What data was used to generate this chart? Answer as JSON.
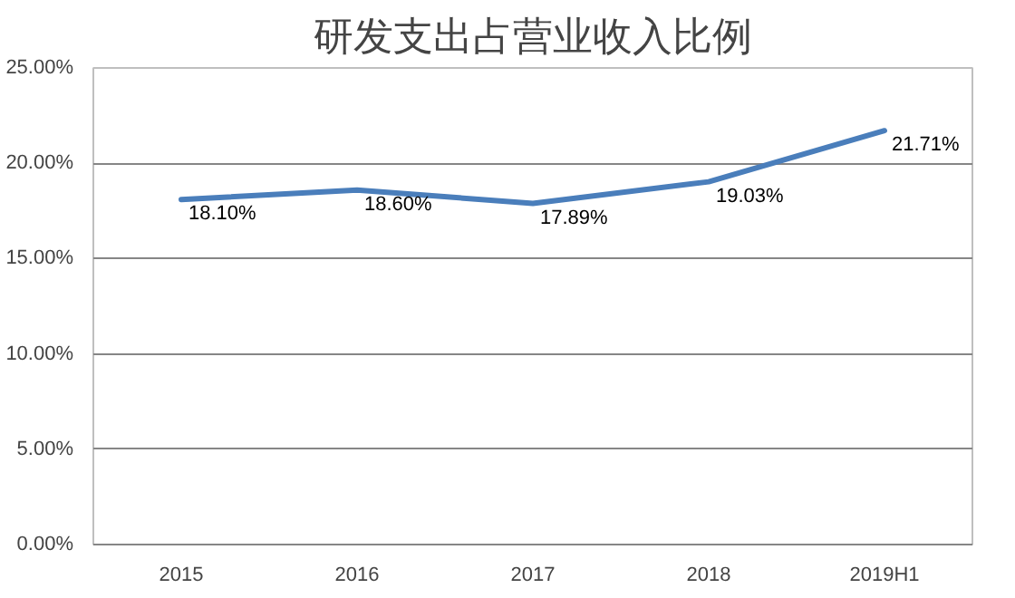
{
  "chart_data": {
    "type": "line",
    "title": "研发支出占营业收入比例",
    "categories": [
      "2015",
      "2016",
      "2017",
      "2018",
      "2019H1"
    ],
    "series": [
      {
        "color": "#4a7ebb",
        "values": [
          18.1,
          18.6,
          17.89,
          19.03,
          21.71
        ],
        "value_labels": [
          "18.10%",
          "18.60%",
          "17.89%",
          "19.03%",
          "21.71%"
        ]
      }
    ],
    "ylim": [
      0,
      25
    ],
    "yticks": [
      {
        "value": 0,
        "label": "0.00%"
      },
      {
        "value": 5,
        "label": "5.00%"
      },
      {
        "value": 10,
        "label": "10.00%"
      },
      {
        "value": 15,
        "label": "15.00%"
      },
      {
        "value": 20,
        "label": "20.00%"
      },
      {
        "value": 25,
        "label": "25.00%"
      }
    ],
    "grid": "y",
    "marker": "none",
    "line_style": "solid"
  }
}
